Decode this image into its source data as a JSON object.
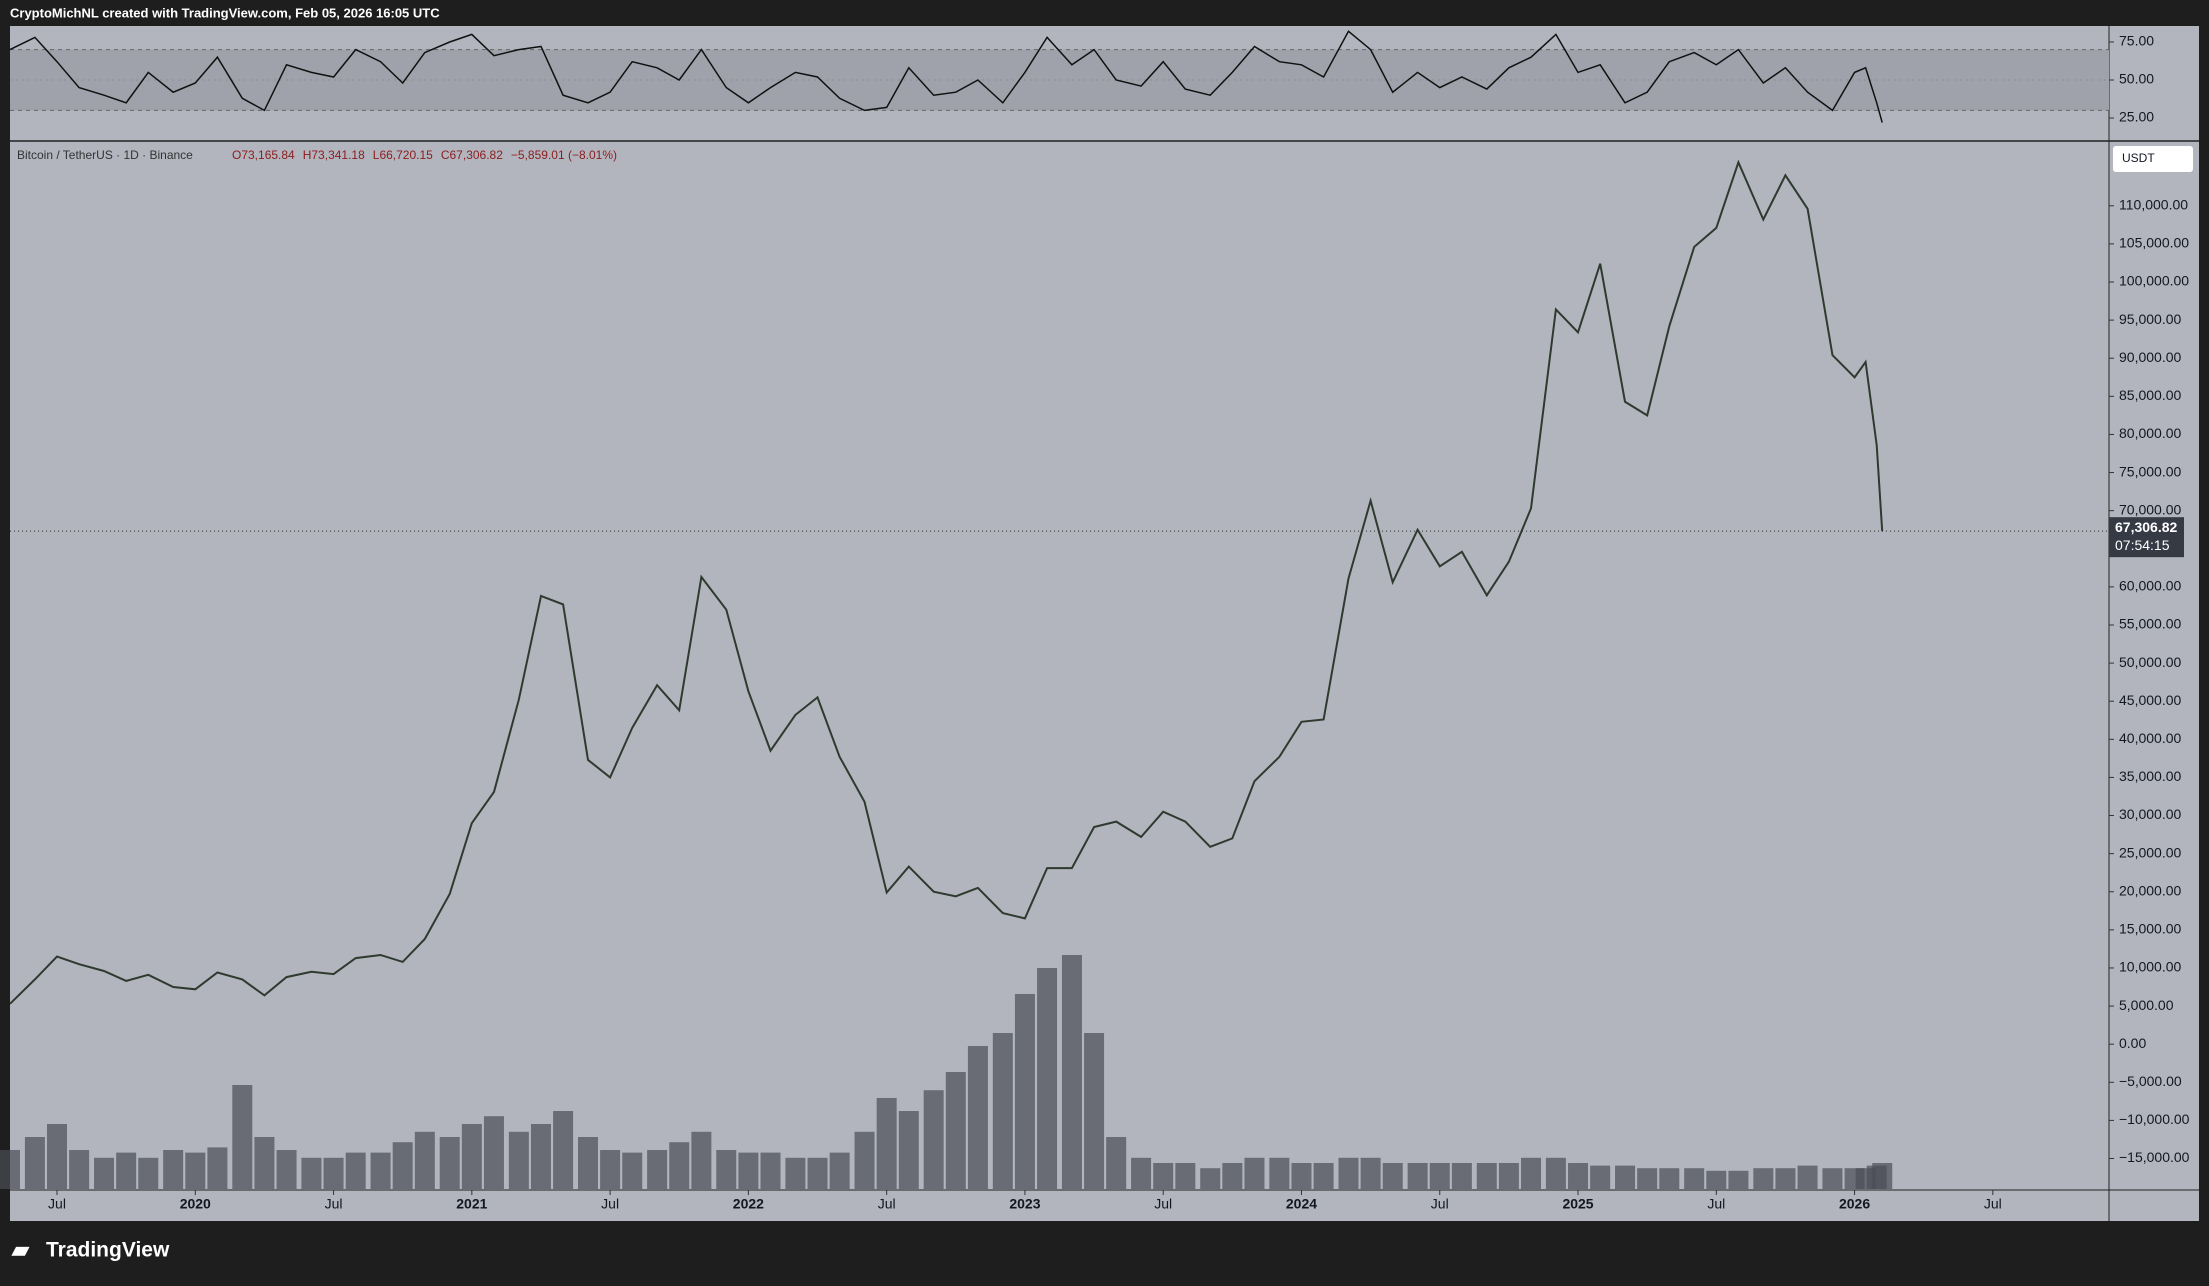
{
  "header": "CryptoMichNL created with TradingView.com, Feb 05, 2026 16:05 UTC",
  "footer": "TradingView",
  "chart_data": {
    "type": "line",
    "symbol": "Bitcoin / TetherUS · 1D · Binance",
    "ohlc": [
      "O73,165.84",
      "H73,341.18",
      "L66,720.15",
      "C67,306.82"
    ],
    "change": "−5,859.01 (−8.01%)",
    "currency": "USDT",
    "countdown": "07:54:15",
    "last_price": {
      "value": 67306.82,
      "label": "67,306.82"
    },
    "x": [
      2019.33,
      2019.42,
      2019.5,
      2019.58,
      2019.67,
      2019.75,
      2019.83,
      2019.92,
      2020.0,
      2020.08,
      2020.17,
      2020.25,
      2020.33,
      2020.42,
      2020.5,
      2020.58,
      2020.67,
      2020.75,
      2020.83,
      2020.92,
      2021.0,
      2021.08,
      2021.17,
      2021.25,
      2021.33,
      2021.42,
      2021.5,
      2021.58,
      2021.67,
      2021.75,
      2021.83,
      2021.92,
      2022.0,
      2022.08,
      2022.17,
      2022.25,
      2022.33,
      2022.42,
      2022.5,
      2022.58,
      2022.67,
      2022.75,
      2022.83,
      2022.92,
      2023.0,
      2023.08,
      2023.17,
      2023.25,
      2023.33,
      2023.42,
      2023.5,
      2023.58,
      2023.67,
      2023.75,
      2023.83,
      2023.92,
      2024.0,
      2024.08,
      2024.17,
      2024.25,
      2024.33,
      2024.42,
      2024.5,
      2024.58,
      2024.67,
      2024.75,
      2024.83,
      2024.92,
      2025.0,
      2025.08,
      2025.17,
      2025.25,
      2025.33,
      2025.42,
      2025.5,
      2025.58,
      2025.67,
      2025.75,
      2025.83,
      2025.92,
      2026.0,
      2026.04,
      2026.08,
      2026.1
    ],
    "series": [
      {
        "color": "#2f3a2f",
        "values": [
          5300,
          8500,
          11500,
          10500,
          9600,
          8300,
          9100,
          7500,
          7200,
          9400,
          8500,
          6400,
          8800,
          9500,
          9200,
          11300,
          11700,
          10800,
          13800,
          19700,
          29000,
          33100,
          45200,
          58800,
          57700,
          37300,
          35000,
          41500,
          47100,
          43800,
          61300,
          57000,
          46300,
          38500,
          43200,
          45500,
          37700,
          31800,
          19900,
          23300,
          20000,
          19400,
          20500,
          17200,
          16500,
          23100,
          23100,
          28500,
          29200,
          27200,
          30500,
          29200,
          25900,
          27000,
          34500,
          37700,
          42300,
          42600,
          61100,
          71300,
          60600,
          67500,
          62700,
          64600,
          58900,
          63300,
          70300,
          96400,
          93400,
          102400,
          84300,
          82500,
          94200,
          104600,
          107100,
          115700,
          108200,
          114000,
          109600,
          90400,
          87500,
          89500,
          78600,
          67306.82
        ]
      }
    ],
    "xlim": [
      2019.33,
      2026.92
    ],
    "xticks": [
      {
        "value": 2019.5,
        "label": "Jul"
      },
      2020,
      {
        "value": 2020.5,
        "label": "Jul"
      },
      2021,
      {
        "value": 2021.5,
        "label": "Jul"
      },
      2022,
      {
        "value": 2022.5,
        "label": "Jul"
      },
      2023,
      {
        "value": 2023.5,
        "label": "Jul"
      },
      2024,
      {
        "value": 2024.5,
        "label": "Jul"
      },
      2025,
      {
        "value": 2025.5,
        "label": "Jul"
      },
      2026,
      {
        "value": 2026.5,
        "label": "Jul"
      }
    ],
    "ylim": [
      -19000,
      118500
    ],
    "yticks": [
      {
        "value": -15000,
        "label": "−15,000.00"
      },
      {
        "value": -10000,
        "label": "−10,000.00"
      },
      {
        "value": -5000,
        "label": "−5,000.00"
      },
      {
        "value": 0,
        "label": "0.00"
      },
      {
        "value": 5000,
        "label": "5,000.00"
      },
      {
        "value": 10000,
        "label": "10,000.00"
      },
      {
        "value": 15000,
        "label": "15,000.00"
      },
      {
        "value": 20000,
        "label": "20,000.00"
      },
      {
        "value": 25000,
        "label": "25,000.00"
      },
      {
        "value": 30000,
        "label": "30,000.00"
      },
      {
        "value": 35000,
        "label": "35,000.00"
      },
      {
        "value": 40000,
        "label": "40,000.00"
      },
      {
        "value": 45000,
        "label": "45,000.00"
      },
      {
        "value": 50000,
        "label": "50,000.00"
      },
      {
        "value": 55000,
        "label": "55,000.00"
      },
      {
        "value": 60000,
        "label": "60,000.00"
      },
      {
        "value": 65000,
        "label": "65,000.00"
      },
      {
        "value": 70000,
        "label": "70,000.00"
      },
      {
        "value": 75000,
        "label": "75,000.00"
      },
      {
        "value": 80000,
        "label": "80,000.00"
      },
      {
        "value": 85000,
        "label": "85,000.00"
      },
      {
        "value": 90000,
        "label": "90,000.00"
      },
      {
        "value": 95000,
        "label": "95,000.00"
      },
      {
        "value": 100000,
        "label": "100,000.00"
      },
      {
        "value": 105000,
        "label": "105,000.00"
      },
      {
        "value": 110000,
        "label": "110,000.00"
      }
    ],
    "rsi": {
      "color": "#111111",
      "band": [
        30,
        70
      ],
      "ylim": [
        9.9,
        85.5
      ],
      "yticks": [
        {
          "value": 25,
          "label": "25.00"
        },
        {
          "value": 50,
          "label": "50.00"
        },
        {
          "value": 75,
          "label": "75.00"
        }
      ],
      "values": [
        70,
        78,
        62,
        45,
        40,
        35,
        55,
        42,
        48,
        65,
        38,
        30,
        60,
        55,
        52,
        70,
        62,
        48,
        68,
        75,
        80,
        66,
        70,
        72,
        40,
        35,
        42,
        62,
        58,
        50,
        70,
        45,
        35,
        45,
        55,
        52,
        38,
        30,
        32,
        58,
        40,
        42,
        50,
        35,
        55,
        78,
        60,
        70,
        50,
        46,
        62,
        44,
        40,
        55,
        72,
        62,
        60,
        52,
        82,
        70,
        42,
        55,
        45,
        52,
        44,
        58,
        65,
        80,
        55,
        60,
        35,
        42,
        62,
        68,
        60,
        70,
        48,
        58,
        42,
        30,
        55,
        58,
        35,
        22
      ]
    },
    "volume": {
      "color": "#4a4d55",
      "ylim": [
        0,
        100
      ],
      "values": [
        15,
        20,
        25,
        15,
        12,
        14,
        12,
        15,
        14,
        16,
        40,
        20,
        15,
        12,
        12,
        14,
        14,
        18,
        22,
        20,
        25,
        28,
        22,
        25,
        30,
        20,
        15,
        14,
        15,
        18,
        22,
        15,
        14,
        14,
        12,
        12,
        14,
        22,
        35,
        30,
        38,
        45,
        55,
        60,
        75,
        85,
        90,
        60,
        20,
        12,
        10,
        10,
        8,
        10,
        12,
        12,
        10,
        10,
        12,
        12,
        10,
        10,
        10,
        10,
        10,
        10,
        12,
        12,
        10,
        9,
        9,
        8,
        8,
        8,
        7,
        7,
        8,
        8,
        9,
        8,
        8,
        8,
        9,
        10
      ]
    }
  }
}
